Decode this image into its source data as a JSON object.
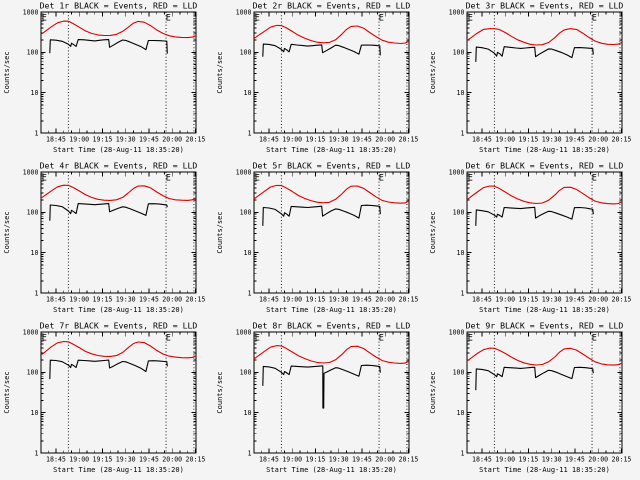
{
  "figure": {
    "background": "#f4f4f4",
    "frame_color": "#000000",
    "text_color": "#000000"
  },
  "legend_note": {
    "black_means": "Events",
    "red_means": "LLD"
  },
  "chart_data": {
    "type": "line",
    "y_scale": "log",
    "grid": "off",
    "x_label": "Start Time (28-Aug-11 18:35:20)",
    "y_label": "Counts/sec",
    "x_tick_labels": [
      "18:45",
      "19:00",
      "19:15",
      "19:30",
      "19:45",
      "20:00",
      "20:15"
    ],
    "x_tick_minutes": [
      45,
      60,
      75,
      90,
      105,
      120,
      135
    ],
    "x_minor_step_minutes": 5,
    "x_domain_minutes_after_1800": [
      35.33,
      135.33
    ],
    "y_tick_labels": [
      "1",
      "10",
      "100",
      "1000"
    ],
    "y_domain": [
      1,
      1000
    ],
    "series_colors": {
      "Events": "#000000",
      "LLD": "#dd0000"
    },
    "eclipse_marker_label": "E",
    "eclipse_marker_minutes": [
      37.5,
      117.5
    ],
    "dotted_line_minutes": [
      53,
      116,
      134
    ],
    "lld_t": [
      35.3,
      38,
      42,
      46,
      50,
      53,
      56,
      60,
      64,
      68,
      72,
      76,
      80,
      84,
      88,
      92,
      95,
      98,
      102,
      106,
      110,
      114,
      118,
      122,
      126,
      130,
      133,
      135.3
    ],
    "events_t": [
      41,
      41.3,
      45,
      49,
      53,
      54.5,
      55,
      56.5,
      58,
      59.3,
      63,
      67,
      70,
      73,
      76,
      79,
      79.6,
      82,
      85,
      88,
      90,
      93,
      96,
      100,
      103,
      104.6,
      108,
      112,
      115,
      116.5,
      116.8
    ],
    "panels": [
      {
        "det": "1r",
        "title": "Det 1r BLACK = Events, RED = LLD",
        "lld_values": [
          280,
          330,
          430,
          540,
          595,
          590,
          520,
          420,
          340,
          295,
          270,
          262,
          263,
          278,
          330,
          430,
          530,
          585,
          560,
          460,
          360,
          295,
          258,
          242,
          234,
          232,
          238,
          260
        ],
        "events_values": [
          95,
          205,
          200,
          188,
          158,
          140,
          168,
          155,
          140,
          207,
          205,
          198,
          192,
          199,
          204,
          207,
          133,
          150,
          176,
          202,
          198,
          178,
          160,
          138,
          116,
          197,
          196,
          194,
          191,
          189,
          93
        ]
      },
      {
        "det": "2r",
        "title": "Det 2r BLACK = Events, RED = LLD",
        "lld_values": [
          220,
          260,
          330,
          420,
          465,
          460,
          410,
          330,
          265,
          225,
          196,
          178,
          172,
          176,
          205,
          280,
          370,
          440,
          450,
          400,
          310,
          245,
          200,
          178,
          170,
          166,
          170,
          190
        ],
        "events_values": [
          78,
          160,
          157,
          146,
          118,
          103,
          125,
          115,
          103,
          158,
          152,
          147,
          143,
          146,
          150,
          153,
          98,
          110,
          128,
          150,
          147,
          133,
          120,
          104,
          90,
          150,
          152,
          150,
          147,
          144,
          84
        ]
      },
      {
        "det": "3r",
        "title": "Det 3r BLACK = Events, RED = LLD",
        "lld_values": [
          195,
          230,
          300,
          370,
          385,
          385,
          370,
          310,
          250,
          205,
          178,
          158,
          152,
          155,
          175,
          230,
          300,
          360,
          385,
          370,
          300,
          235,
          190,
          168,
          158,
          156,
          160,
          178
        ],
        "events_values": [
          58,
          135,
          130,
          120,
          95,
          80,
          100,
          92,
          80,
          138,
          133,
          128,
          125,
          128,
          131,
          134,
          78,
          90,
          105,
          122,
          120,
          110,
          100,
          86,
          74,
          130,
          131,
          129,
          126,
          123,
          88
        ]
      },
      {
        "det": "4r",
        "title": "Det 4r BLACK = Events, RED = LLD",
        "lld_values": [
          225,
          265,
          340,
          430,
          470,
          465,
          415,
          340,
          275,
          235,
          210,
          200,
          198,
          204,
          235,
          310,
          390,
          450,
          455,
          405,
          320,
          260,
          220,
          205,
          200,
          198,
          205,
          230
        ],
        "events_values": [
          62,
          152,
          148,
          138,
          108,
          93,
          112,
          103,
          93,
          165,
          162,
          158,
          155,
          158,
          162,
          165,
          103,
          112,
          125,
          137,
          134,
          122,
          110,
          95,
          84,
          163,
          164,
          160,
          155,
          150,
          135
        ]
      },
      {
        "det": "5r",
        "title": "Det 5r BLACK = Events, RED = LLD",
        "lld_values": [
          215,
          255,
          330,
          425,
          465,
          460,
          405,
          330,
          262,
          222,
          195,
          178,
          172,
          177,
          210,
          285,
          375,
          445,
          450,
          395,
          310,
          243,
          198,
          180,
          172,
          168,
          172,
          192
        ],
        "events_values": [
          46,
          132,
          128,
          118,
          92,
          80,
          98,
          90,
          80,
          140,
          137,
          134,
          132,
          135,
          138,
          142,
          80,
          92,
          108,
          122,
          119,
          108,
          98,
          84,
          72,
          148,
          150,
          147,
          143,
          140,
          90
        ]
      },
      {
        "det": "6r",
        "title": "Det 6r BLACK = Events, RED = LLD",
        "lld_values": [
          205,
          245,
          320,
          410,
          450,
          445,
          395,
          320,
          255,
          215,
          188,
          172,
          166,
          170,
          200,
          268,
          350,
          415,
          420,
          370,
          295,
          232,
          190,
          172,
          165,
          162,
          166,
          185
        ],
        "events_values": [
          46,
          115,
          110,
          103,
          85,
          76,
          90,
          84,
          76,
          132,
          129,
          126,
          124,
          127,
          130,
          133,
          72,
          82,
          94,
          106,
          104,
          95,
          87,
          76,
          68,
          130,
          132,
          128,
          122,
          118,
          90
        ]
      },
      {
        "det": "7r",
        "title": "Det 7r BLACK = Events, RED = LLD",
        "lld_values": [
          270,
          320,
          430,
          540,
          580,
          570,
          500,
          410,
          330,
          288,
          262,
          250,
          248,
          260,
          310,
          420,
          520,
          565,
          545,
          450,
          350,
          285,
          252,
          238,
          231,
          229,
          235,
          258
        ],
        "events_values": [
          68,
          200,
          196,
          184,
          150,
          132,
          158,
          146,
          132,
          200,
          197,
          192,
          188,
          192,
          197,
          201,
          128,
          142,
          165,
          186,
          182,
          165,
          148,
          125,
          105,
          192,
          194,
          190,
          186,
          182,
          140
        ]
      },
      {
        "det": "8r",
        "title": "Det 8r BLACK = Events, RED = LLD",
        "lld_values": [
          215,
          255,
          330,
          420,
          460,
          450,
          395,
          320,
          258,
          220,
          192,
          176,
          170,
          175,
          205,
          275,
          365,
          435,
          445,
          390,
          305,
          240,
          196,
          178,
          170,
          167,
          171,
          190
        ],
        "events_points": [
          [
            41,
            46
          ],
          [
            41.3,
            140
          ],
          [
            45,
            136
          ],
          [
            49,
            126
          ],
          [
            53,
            100
          ],
          [
            54.5,
            88
          ],
          [
            55,
            105
          ],
          [
            56.5,
            97
          ],
          [
            58,
            88
          ],
          [
            59.3,
            143
          ],
          [
            63,
            140
          ],
          [
            67,
            137
          ],
          [
            70,
            135
          ],
          [
            73,
            138
          ],
          [
            76,
            141
          ],
          [
            79,
            144
          ],
          [
            79.7,
            144
          ],
          [
            79.8,
            13
          ],
          [
            80.3,
            13
          ],
          [
            80.5,
            95
          ],
          [
            82,
            100
          ],
          [
            85,
            115
          ],
          [
            88,
            130
          ],
          [
            90,
            127
          ],
          [
            93,
            115
          ],
          [
            96,
            104
          ],
          [
            100,
            90
          ],
          [
            103,
            80
          ],
          [
            104.6,
            148
          ],
          [
            108,
            150
          ],
          [
            112,
            147
          ],
          [
            115,
            142
          ],
          [
            116.5,
            138
          ],
          [
            116.8,
            98
          ]
        ]
      },
      {
        "det": "9r",
        "title": "Det 9r BLACK = Events, RED = LLD",
        "lld_values": [
          190,
          225,
          295,
          365,
          400,
          395,
          355,
          295,
          238,
          198,
          172,
          158,
          152,
          156,
          182,
          240,
          315,
          380,
          395,
          355,
          285,
          225,
          182,
          162,
          154,
          151,
          155,
          172
        ],
        "events_values": [
          36,
          122,
          118,
          110,
          88,
          78,
          92,
          86,
          78,
          133,
          130,
          127,
          125,
          128,
          131,
          134,
          74,
          84,
          98,
          112,
          110,
          100,
          90,
          78,
          70,
          132,
          133,
          130,
          126,
          122,
          95
        ]
      }
    ]
  }
}
